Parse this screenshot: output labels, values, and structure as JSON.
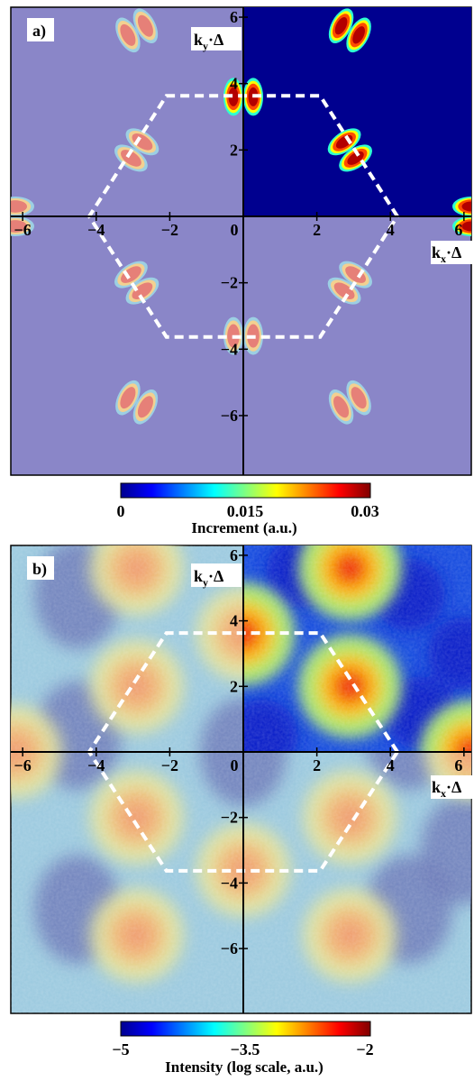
{
  "chart_data": [
    {
      "type": "heatmap",
      "panel_label": "a)",
      "xlabel": {
        "main": "k",
        "sub": "x",
        "suffix": "·Δ"
      },
      "ylabel": {
        "main": "k",
        "sub": "y",
        "suffix": "·Δ"
      },
      "xlim": [
        -6.2,
        6.2
      ],
      "ylim": [
        -6.3,
        6.3
      ],
      "x_ticks": [
        -6,
        -4,
        -2,
        0,
        2,
        4,
        6
      ],
      "y_ticks": [
        -6,
        -4,
        -2,
        2,
        4,
        6
      ],
      "x_tick_labels": [
        "−6",
        "−4",
        "−2",
        "0",
        "2",
        "4",
        "6"
      ],
      "y_tick_labels": [
        "−6",
        "−4",
        "−2",
        "2",
        "4",
        "6"
      ],
      "colorbar": {
        "label": "Increment (a.u.)",
        "ticks": [
          0,
          0.015,
          0.03
        ],
        "tick_labels": [
          "0",
          "0.015",
          "0.03"
        ],
        "range": [
          0,
          0.03
        ]
      },
      "brillouin_zone": [
        [
          4.19,
          0
        ],
        [
          2.09,
          3.63
        ],
        [
          -2.09,
          3.63
        ],
        [
          -4.19,
          0
        ],
        [
          -2.09,
          -3.63
        ],
        [
          2.09,
          -3.63
        ]
      ],
      "peaks": [
        {
          "x": 2.9,
          "y": 2.0
        },
        {
          "x": 0,
          "y": 3.6
        },
        {
          "x": -2.9,
          "y": 2.0
        },
        {
          "x": -2.9,
          "y": -2.0
        },
        {
          "x": 0,
          "y": -3.6
        },
        {
          "x": 2.9,
          "y": -2.0
        },
        {
          "x": 2.9,
          "y": 5.6
        },
        {
          "x": -2.9,
          "y": 5.6
        },
        {
          "x": 2.9,
          "y": -5.6
        },
        {
          "x": -2.9,
          "y": -5.6
        },
        {
          "x": 6.2,
          "y": 0
        },
        {
          "x": -6.2,
          "y": 0
        }
      ],
      "quadrant_full_colour": "upper-right",
      "peak_value": 0.03,
      "background_value": 0
    },
    {
      "type": "heatmap",
      "panel_label": "b)",
      "xlabel": {
        "main": "k",
        "sub": "x",
        "suffix": "·Δ"
      },
      "ylabel": {
        "main": "k",
        "sub": "y",
        "suffix": "·Δ"
      },
      "xlim": [
        -6.2,
        6.2
      ],
      "ylim": [
        -6.3,
        6.3
      ],
      "x_ticks": [
        -6,
        -4,
        -2,
        0,
        2,
        4,
        6
      ],
      "y_ticks": [
        -6,
        -4,
        -2,
        2,
        4,
        6
      ],
      "x_tick_labels": [
        "−6",
        "−4",
        "−2",
        "0",
        "2",
        "4",
        "6"
      ],
      "y_tick_labels": [
        "−6",
        "−4",
        "−2",
        "2",
        "4",
        "6"
      ],
      "colorbar": {
        "label": "Intensity (log scale, a.u.)",
        "ticks": [
          -5,
          -3.5,
          -2
        ],
        "tick_labels": [
          "−5",
          "−3.5",
          "−2"
        ],
        "range": [
          -5,
          -2
        ]
      },
      "brillouin_zone": [
        [
          4.19,
          0
        ],
        [
          2.09,
          3.63
        ],
        [
          -2.09,
          3.63
        ],
        [
          -4.19,
          0
        ],
        [
          -2.09,
          -3.63
        ],
        [
          2.09,
          -3.63
        ]
      ],
      "peaks": [
        {
          "x": 2.9,
          "y": 2.0
        },
        {
          "x": 0,
          "y": 3.6
        },
        {
          "x": -2.9,
          "y": 2.0
        },
        {
          "x": -2.9,
          "y": -2.0
        },
        {
          "x": 0,
          "y": -3.6
        },
        {
          "x": 2.9,
          "y": -2.0
        },
        {
          "x": 2.9,
          "y": 5.6
        },
        {
          "x": -2.9,
          "y": 5.6
        },
        {
          "x": 2.9,
          "y": -5.6
        },
        {
          "x": -2.9,
          "y": -5.6
        },
        {
          "x": 6.2,
          "y": 0
        },
        {
          "x": -6.2,
          "y": 0
        }
      ],
      "valleys": [
        {
          "x": 0,
          "y": 0
        },
        {
          "x": 4.5,
          "y": 0.5
        },
        {
          "x": -4.5,
          "y": 0.5
        },
        {
          "x": 4.5,
          "y": 4.8
        },
        {
          "x": -4.5,
          "y": 4.8
        },
        {
          "x": 4.5,
          "y": -4.8
        },
        {
          "x": -4.5,
          "y": -4.8
        },
        {
          "x": 6.0,
          "y": -3.0
        }
      ],
      "quadrant_full_colour": "upper-right",
      "peak_value": -2.3,
      "background_value": -4.4
    }
  ]
}
